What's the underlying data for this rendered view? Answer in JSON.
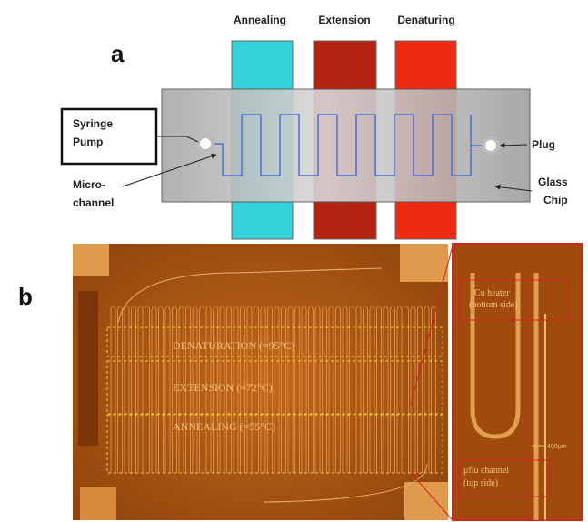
{
  "panel_a": {
    "label": "a",
    "heaters": [
      "Annealing",
      "Extension",
      "Denaturing"
    ],
    "syringe_pump": [
      "Syringe",
      "Pump"
    ],
    "plug": "Plug",
    "micro_channel": [
      "Micro-",
      "channel"
    ],
    "glass_chip": [
      "Glass",
      "Chip"
    ]
  },
  "panel_b": {
    "label": "b",
    "zones": [
      "DENATURATION (≈95°C)",
      "EXTENSION (≈72°C)",
      "ANNEALING (≈55°C)"
    ],
    "inset": {
      "heater": [
        "Cu heater",
        "(bottom side)"
      ],
      "channel": [
        "μflu channel",
        "(top side)"
      ],
      "scale": "400μm"
    }
  }
}
